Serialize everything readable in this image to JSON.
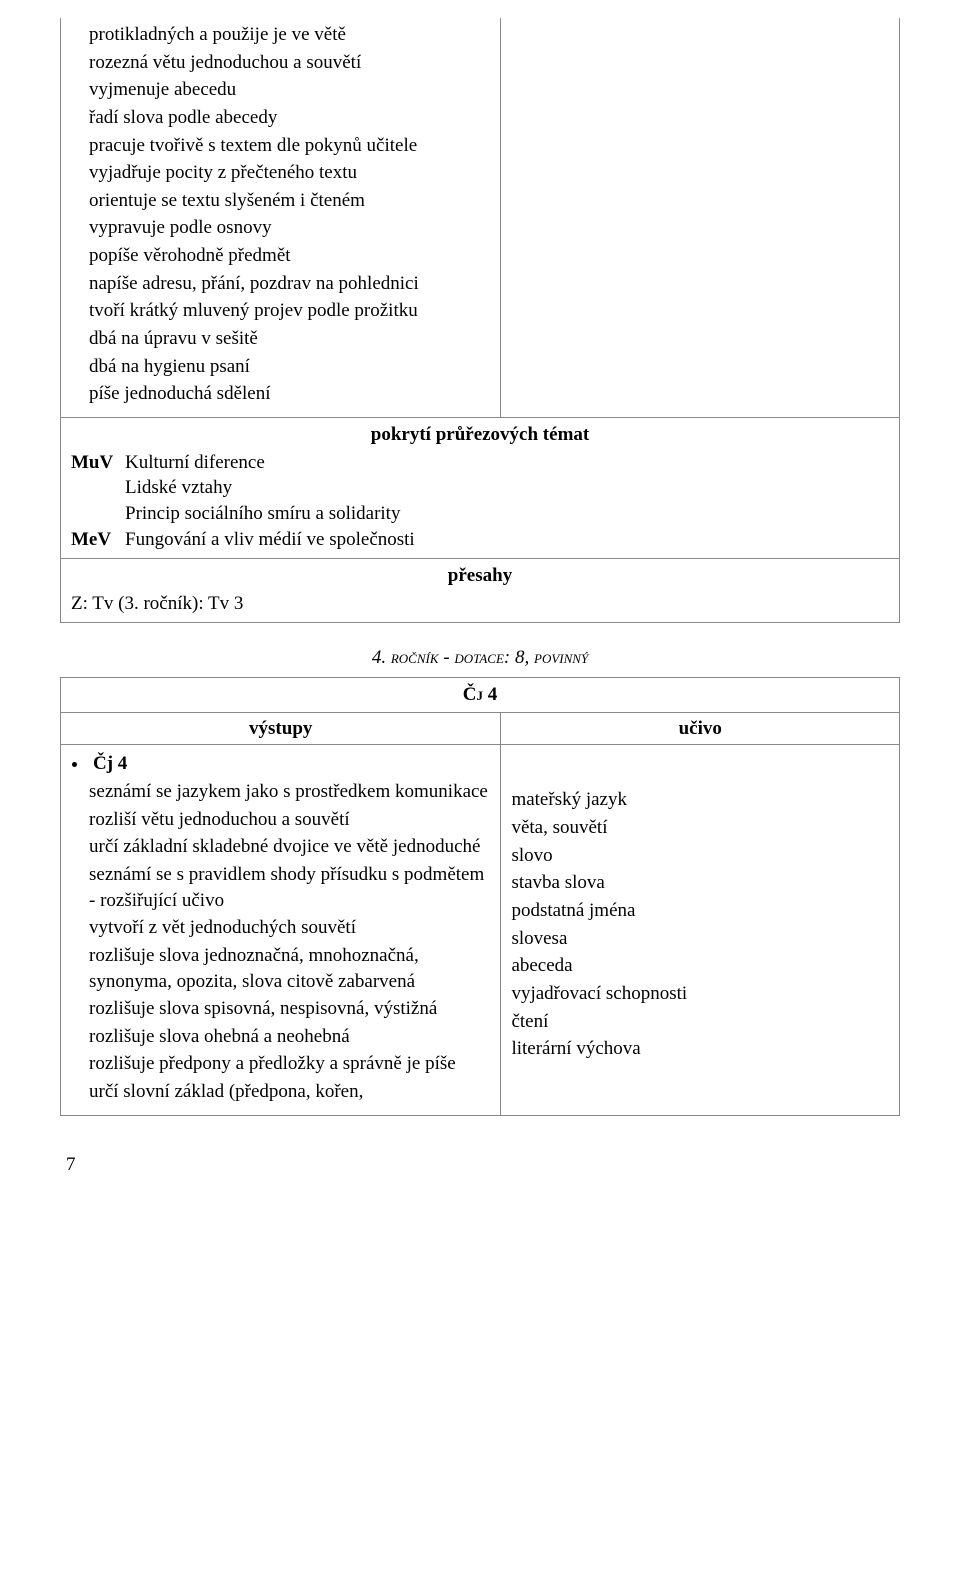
{
  "top_block": {
    "lines": [
      "protikladných a použije je ve větě",
      "rozezná větu jednoduchou a souvětí",
      "vyjmenuje abecedu",
      "řadí slova podle abecedy",
      "pracuje tvořivě s textem dle pokynů učitele",
      "vyjadřuje pocity z přečteného textu",
      "orientuje se textu slyšeném i čteném",
      "vypravuje podle osnovy",
      "popíše věrohodně předmět",
      "napíše adresu, přání, pozdrav na pohlednici",
      "tvoří krátký mluvený projev podle prožitku",
      "dbá na úpravu v sešitě",
      "dbá na hygienu psaní",
      "píše jednoduchá sdělení"
    ]
  },
  "band1": {
    "title": "pokrytí průřezových témat",
    "rows": [
      {
        "code": "MuV",
        "items": [
          "Kulturní diference",
          "Lidské vztahy",
          "Princip sociálního smíru a solidarity"
        ]
      },
      {
        "code": "MeV",
        "items": [
          "Fungování a vliv médií ve společnosti"
        ]
      }
    ]
  },
  "band2": {
    "title": "přesahy",
    "content": "Z:  Tv (3. ročník): Tv 3"
  },
  "grade_heading": "4. ročník - dotace: 8, povinný",
  "subject_code": "Čj 4",
  "col_headers": {
    "left": "výstupy",
    "right": "učivo"
  },
  "outputs": {
    "bullet": "Čj 4",
    "lines": [
      "seznámí se jazykem jako s prostředkem komunikace",
      "rozliší větu jednoduchou a souvětí",
      "určí základní skladebné dvojice ve větě jednoduché",
      "seznámí se s pravidlem shody přísudku s podmětem - rozšiřující učivo",
      "vytvoří z vět jednoduchých souvětí",
      "rozlišuje slova jednoznačná, mnohoznačná, synonyma, opozita, slova citově zabarvená",
      "rozlišuje slova spisovná, nespisovná, výstižná",
      "rozlišuje slova ohebná a neohebná",
      "rozlišuje předpony a předložky a správně je píše",
      "určí slovní základ (předpona, kořen,"
    ]
  },
  "learning": [
    "mateřský jazyk",
    "věta, souvětí",
    "slovo",
    "stavba slova",
    "podstatná jména",
    "slovesa",
    "abeceda",
    "vyjadřovací schopnosti",
    "čtení",
    "literární výchova"
  ],
  "page_number": "7"
}
